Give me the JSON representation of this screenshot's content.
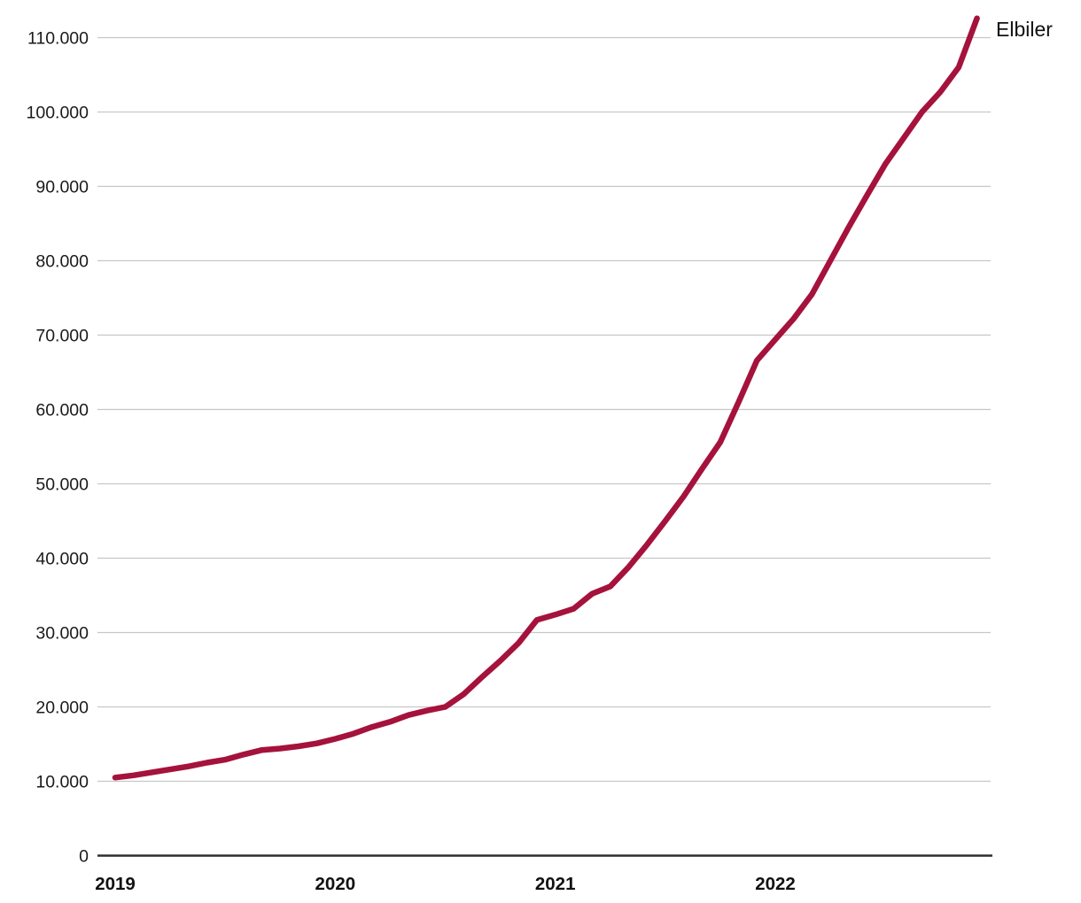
{
  "chart_data": {
    "type": "line",
    "title": "",
    "xlabel": "",
    "ylabel": "",
    "grid": "horizontal",
    "legend_position": "end-of-line-right",
    "background_color": "#ffffff",
    "gridline_color": "#c7c7c7",
    "axis_color": "#2e2e2e",
    "ylim": [
      0,
      113500
    ],
    "ytick_values": [
      0,
      10000,
      20000,
      30000,
      40000,
      50000,
      60000,
      70000,
      80000,
      90000,
      100000,
      110000
    ],
    "ytick_labels": [
      "0",
      "10.000",
      "20.000",
      "30.000",
      "40.000",
      "50.000",
      "60.000",
      "70.000",
      "80.000",
      "90.000",
      "100.000",
      "110.000"
    ],
    "x": {
      "unit": "month",
      "year_ticks": [
        "2019",
        "2020",
        "2021",
        "2022"
      ]
    },
    "categories": [
      "2019-01",
      "2019-02",
      "2019-03",
      "2019-04",
      "2019-05",
      "2019-06",
      "2019-07",
      "2019-08",
      "2019-09",
      "2019-10",
      "2019-11",
      "2019-12",
      "2020-01",
      "2020-02",
      "2020-03",
      "2020-04",
      "2020-05",
      "2020-06",
      "2020-07",
      "2020-08",
      "2020-09",
      "2020-10",
      "2020-11",
      "2020-12",
      "2021-01",
      "2021-02",
      "2021-03",
      "2021-04",
      "2021-05",
      "2021-06",
      "2021-07",
      "2021-08",
      "2021-09",
      "2021-10",
      "2021-11",
      "2021-12",
      "2022-01",
      "2022-02",
      "2022-03",
      "2022-04",
      "2022-05",
      "2022-06",
      "2022-07",
      "2022-08",
      "2022-09",
      "2022-10",
      "2022-11",
      "2022-12"
    ],
    "series": [
      {
        "name": "Elbiler",
        "color": "#a5123c",
        "values": [
          10500,
          10800,
          11200,
          11600,
          12000,
          12500,
          12900,
          13600,
          14200,
          14400,
          14700,
          15100,
          15700,
          16400,
          17300,
          18000,
          18900,
          19500,
          20000,
          21700,
          24000,
          26200,
          28600,
          31700,
          32400,
          33200,
          35200,
          36200,
          38800,
          41800,
          45000,
          48300,
          52000,
          55600,
          61000,
          66600,
          69400,
          72200,
          75500,
          80000,
          84500,
          88800,
          93000,
          96500,
          100000,
          102700,
          106000,
          112600
        ]
      }
    ]
  }
}
